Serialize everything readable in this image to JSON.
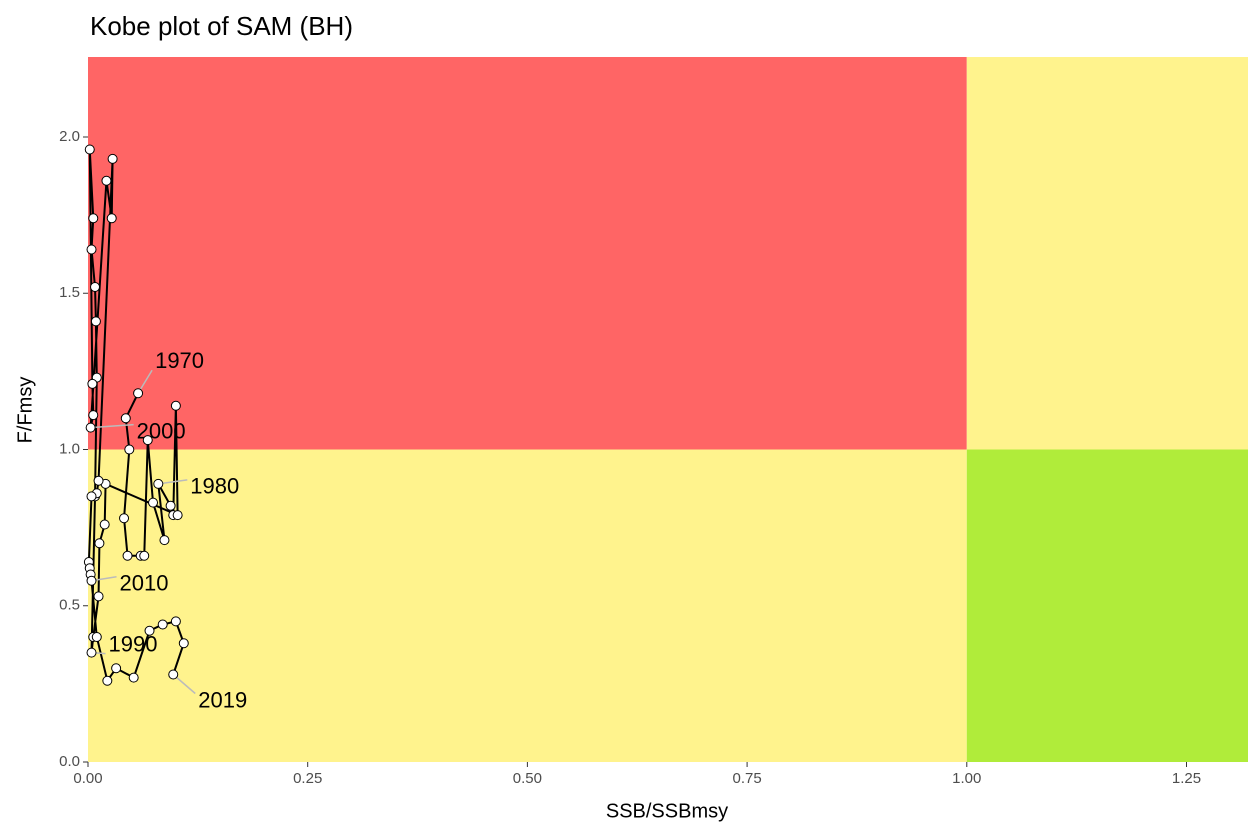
{
  "chart_data": {
    "type": "kobe",
    "title": "Kobe plot of SAM (BH)",
    "xlabel": "SSB/SSBmsy",
    "ylabel": "F/Fmsy",
    "xlim": [
      0,
      1.32
    ],
    "ylim": [
      0,
      2.256
    ],
    "xticks": [
      {
        "value": 0,
        "label": "0.00"
      },
      {
        "value": 0.25,
        "label": "0.25"
      },
      {
        "value": 0.5,
        "label": "0.50"
      },
      {
        "value": 0.75,
        "label": "0.75"
      },
      {
        "value": 1,
        "label": "1.00"
      },
      {
        "value": 1.25,
        "label": "1.25"
      }
    ],
    "yticks": [
      {
        "value": 0,
        "label": "0.0"
      },
      {
        "value": 0.5,
        "label": "0.5"
      },
      {
        "value": 1,
        "label": "1.0"
      },
      {
        "value": 1.5,
        "label": "1.5"
      },
      {
        "value": 2,
        "label": "2.0"
      }
    ],
    "reference": {
      "x": 1,
      "y": 1
    },
    "quadrant_colors": {
      "overfished_overfishing": "#ff6565",
      "overfished": "#fff38d",
      "overfishing": "#fff38d",
      "healthy": "#b0ec3a"
    },
    "series": [
      {
        "color": "#000000",
        "x": [
          0.057,
          0.043,
          0.047,
          0.041,
          0.045,
          0.06,
          0.064,
          0.068,
          0.074,
          0.087,
          0.08,
          0.094,
          0.097,
          0.1,
          0.102,
          0.02,
          0.019,
          0.013,
          0.012,
          0.006,
          0.004,
          0.008,
          0.01,
          0.009,
          0.008,
          0.004,
          0.006,
          0.002,
          0.005,
          0.006,
          0.003,
          0.021,
          0.027,
          0.028,
          0.012,
          0.01,
          0.004,
          0.001,
          0.002,
          0.003,
          0.004,
          0.01,
          0.022,
          0.032,
          0.052,
          0.07,
          0.085,
          0.1,
          0.109,
          0.097
        ],
        "values": [
          1.18,
          1.1,
          1.0,
          0.78,
          0.66,
          0.66,
          0.66,
          1.03,
          0.83,
          0.71,
          0.89,
          0.82,
          0.79,
          1.14,
          0.79,
          0.89,
          0.76,
          0.7,
          0.53,
          0.4,
          0.35,
          0.85,
          1.23,
          1.41,
          1.52,
          1.64,
          1.74,
          1.96,
          1.21,
          1.11,
          1.07,
          1.86,
          1.74,
          1.93,
          0.9,
          0.86,
          0.85,
          0.64,
          0.62,
          0.6,
          0.58,
          0.4,
          0.26,
          0.3,
          0.27,
          0.42,
          0.44,
          0.45,
          0.38,
          0.28
        ],
        "labels": [
          "1970",
          null,
          null,
          null,
          null,
          null,
          null,
          null,
          null,
          null,
          "1980",
          null,
          null,
          null,
          null,
          null,
          null,
          null,
          null,
          null,
          "1990",
          null,
          null,
          null,
          null,
          null,
          null,
          null,
          null,
          null,
          "2000",
          null,
          null,
          null,
          null,
          null,
          null,
          null,
          null,
          null,
          "2010",
          null,
          null,
          null,
          null,
          null,
          null,
          null,
          null,
          "2019"
        ]
      }
    ]
  }
}
